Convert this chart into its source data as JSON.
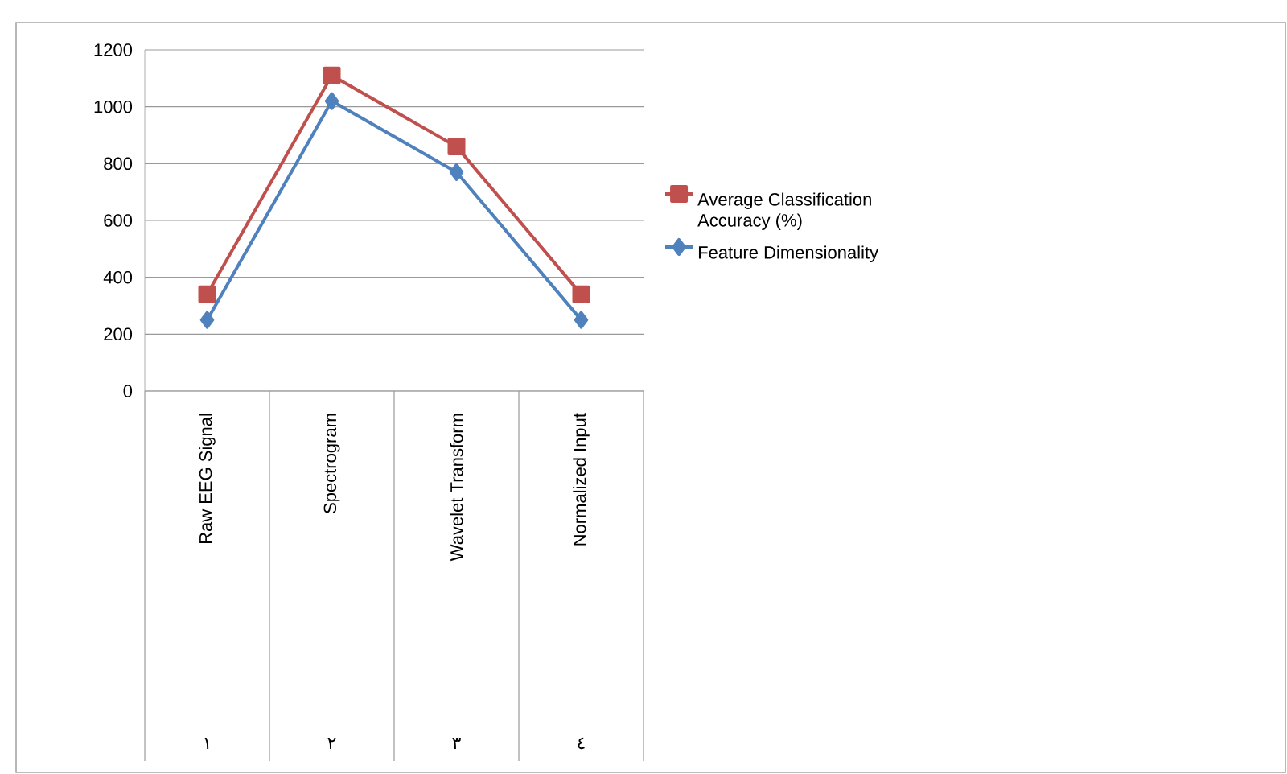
{
  "chart_data": {
    "type": "line",
    "categories": [
      "Raw EEG Signal",
      "Spectrogram",
      "Wavelet Transform",
      "Normalized Input"
    ],
    "series": [
      {
        "name": "Average Classification Accuracy (%)",
        "color": "#c0504d",
        "marker": "square",
        "values": [
          340,
          1110,
          860,
          340
        ]
      },
      {
        "name": "Feature Dimensionality",
        "color": "#4f81bd",
        "marker": "diamond",
        "values": [
          250,
          1020,
          770,
          250
        ]
      }
    ],
    "annotations": [
      "١",
      "٢",
      "٣",
      "٤"
    ],
    "ylim": [
      0,
      1200
    ],
    "yticks": [
      0,
      200,
      400,
      600,
      800,
      1000,
      1200
    ],
    "grid": "y",
    "legend": "right",
    "line_style": "solid"
  }
}
